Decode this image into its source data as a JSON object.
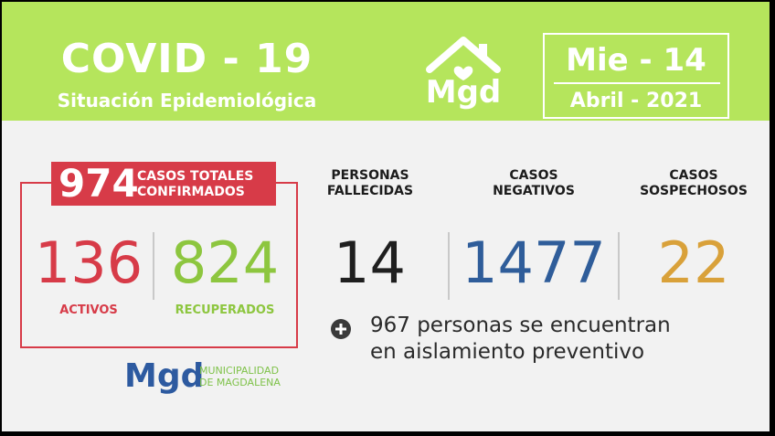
{
  "header": {
    "title": "COVID - 19",
    "subtitle": "Situación Epidemiológica",
    "logo_text": "Mgd",
    "date_day": "Mie - 14",
    "date_month": "Abril - 2021",
    "bg_color": "#b5e55c"
  },
  "confirmed": {
    "total": "974",
    "total_label_line1": "CASOS TOTALES",
    "total_label_line2": "CONFIRMADOS",
    "active": "136",
    "active_label": "ACTIVOS",
    "recovered": "824",
    "recovered_label": "RECUPERADOS",
    "accent_color": "#d73b48",
    "recovered_color": "#8dc63f"
  },
  "stats": {
    "deaths_label_line1": "PERSONAS",
    "deaths_label_line2": "FALLECIDAS",
    "deaths": "14",
    "negative_label_line1": "CASOS",
    "negative_label_line2": "NEGATIVOS",
    "negative": "1477",
    "suspected_label_line1": "CASOS",
    "suspected_label_line2": "SOSPECHOSOS",
    "suspected": "22",
    "negative_color": "#2f5d9a",
    "suspected_color": "#d9a13a"
  },
  "isolation": {
    "icon": "plus-circle-icon",
    "line1": "967 personas se encuentran",
    "line2": "en aislamiento preventivo"
  },
  "footer": {
    "logo_text": "Mgd",
    "muni_line1": "MUNICIPALIDAD",
    "muni_line2": "DE MAGDALENA"
  }
}
